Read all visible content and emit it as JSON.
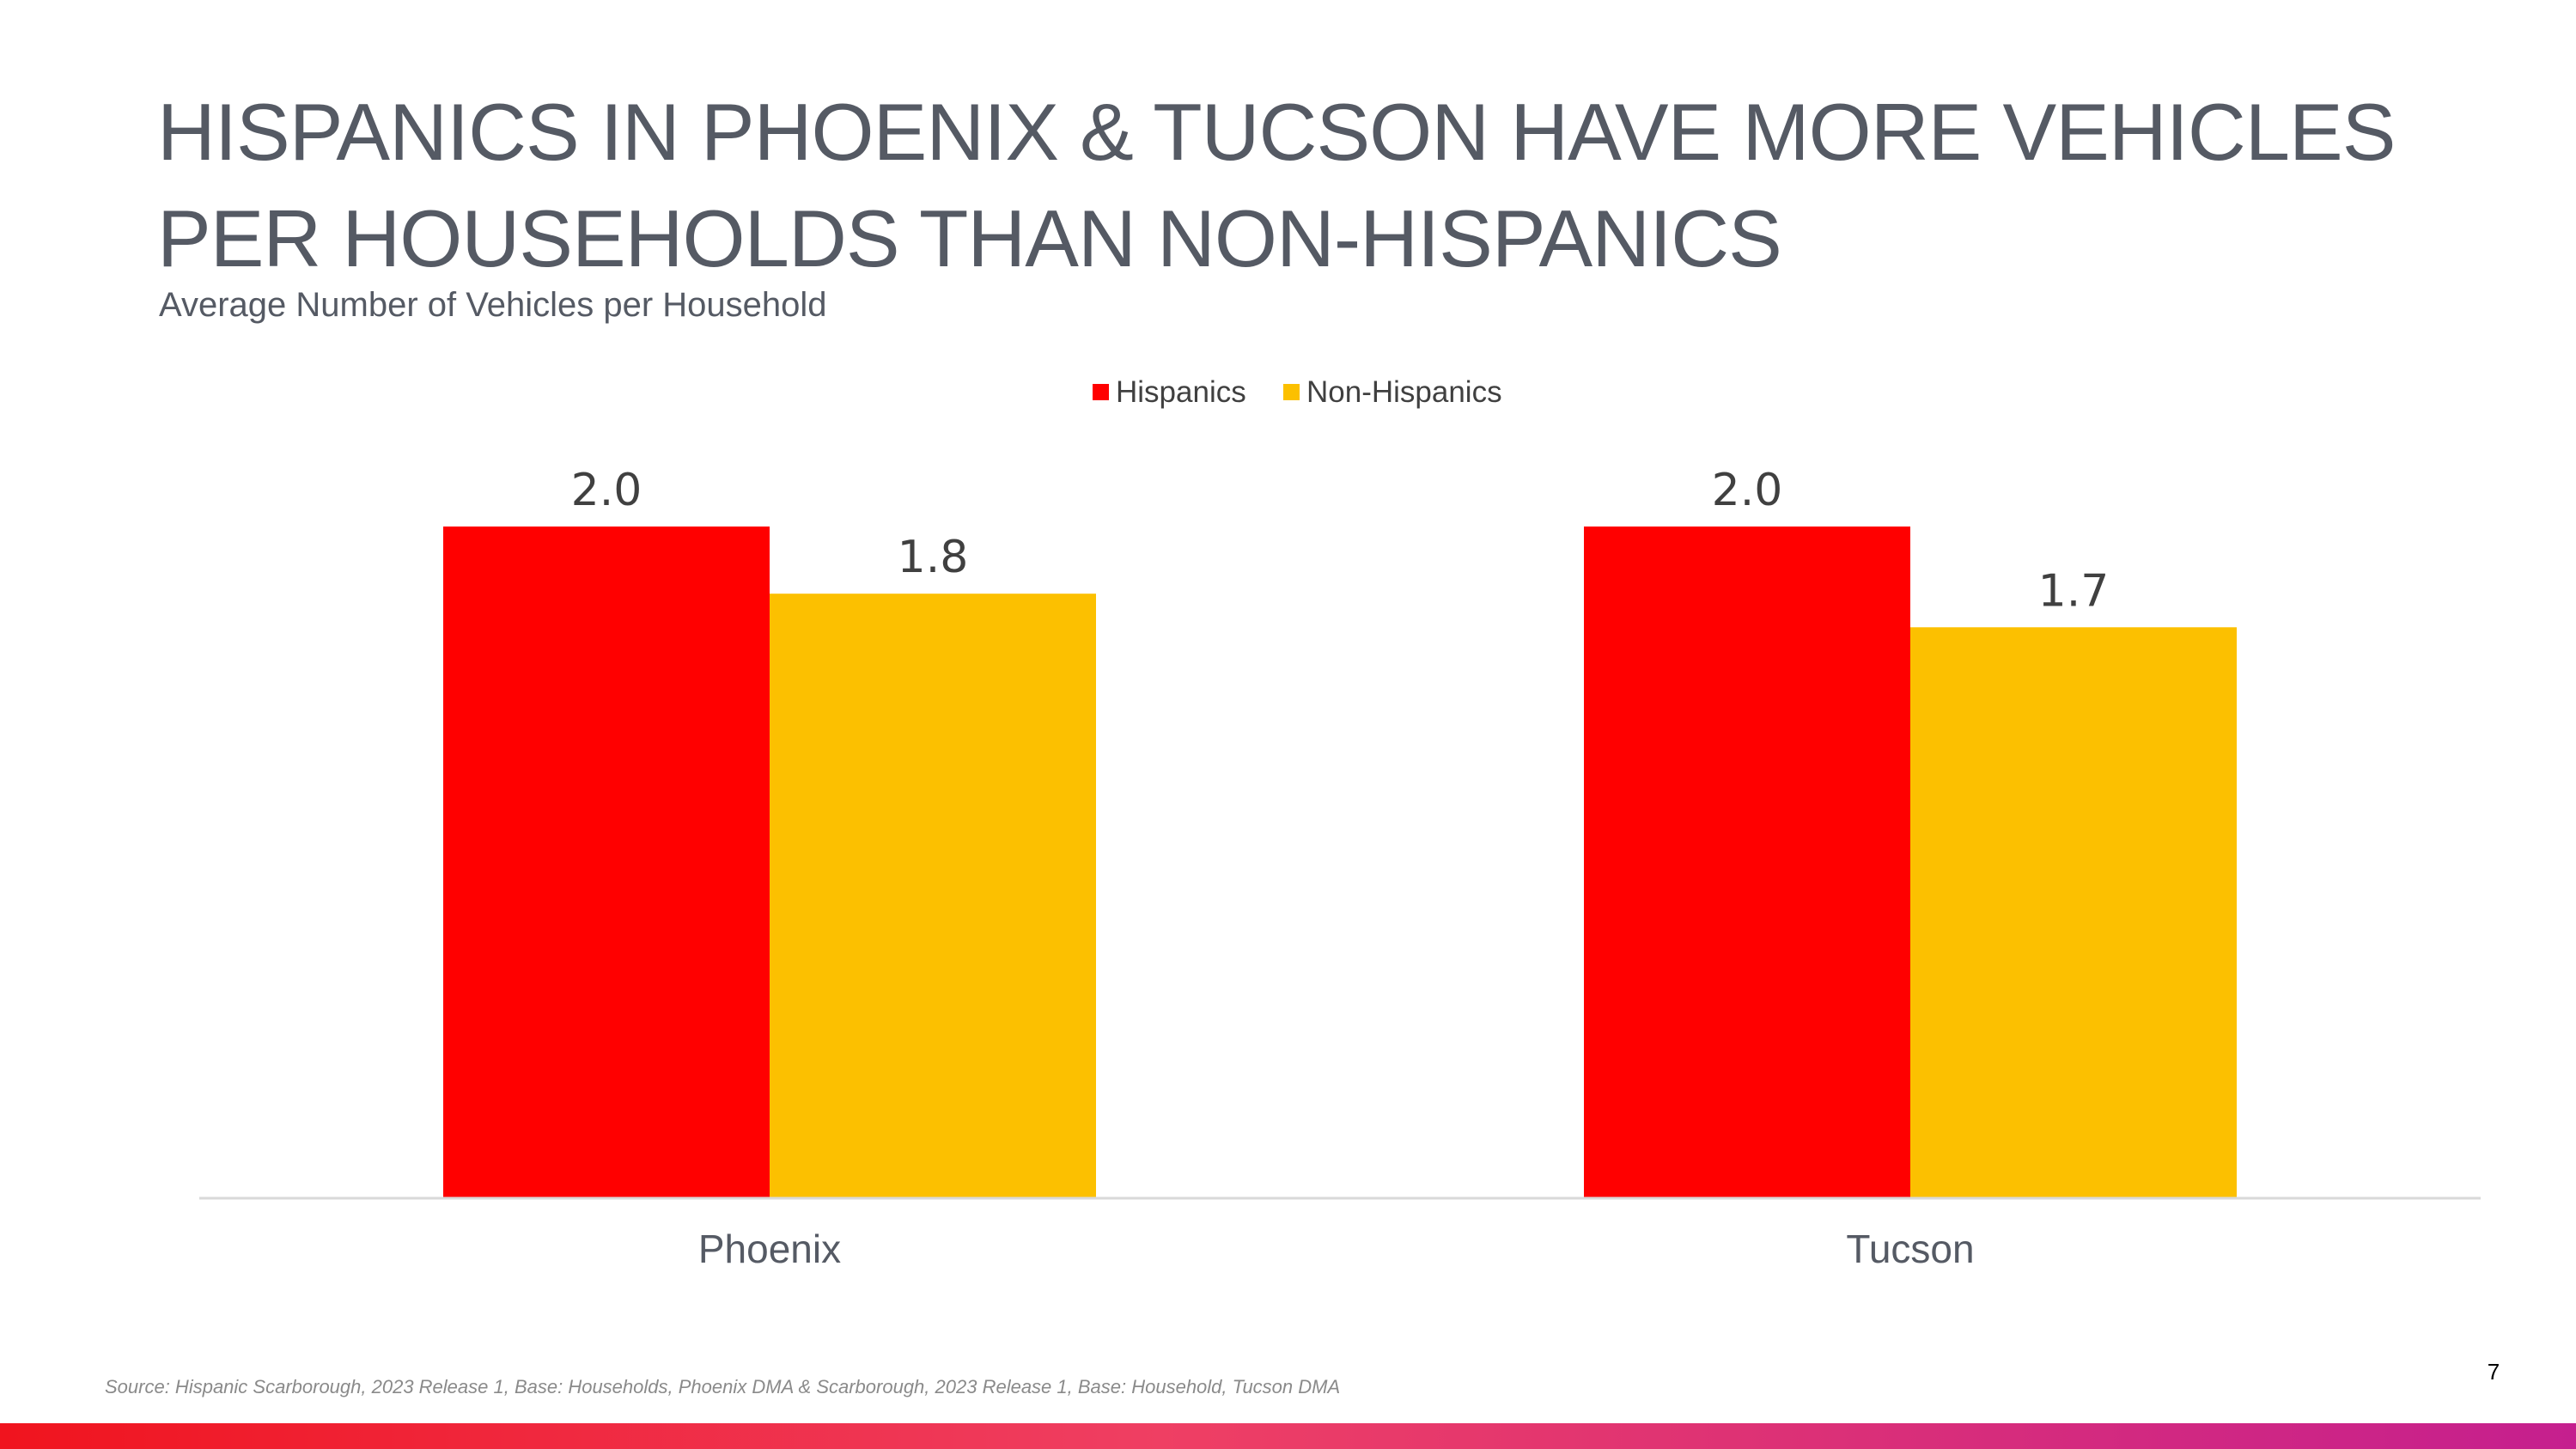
{
  "page": {
    "title": "HISPANICS IN PHOENIX & TUCSON HAVE MORE VEHICLES PER HOUSEHOLDS THAN NON-HISPANICS",
    "subtitle": "Average Number of Vehicles per Household",
    "source": "Source: Hispanic Scarborough, 2023 Release 1, Base: Households, Phoenix DMA & Scarborough, 2023 Release 1, Base: Household, Tucson DMA",
    "page_number": "7"
  },
  "colors": {
    "hispanics": "#ff0000",
    "non_hispanics": "#fcc000",
    "title_text": "#555a64",
    "axis_line": "#d9d9d9",
    "gradient_start": "#f0141e",
    "gradient_mid": "#ef3f63",
    "gradient_end": "#c51f8e"
  },
  "chart_data": {
    "type": "bar",
    "title": "Average Number of Vehicles per Household",
    "categories": [
      "Phoenix",
      "Tucson"
    ],
    "series": [
      {
        "name": "Hispanics",
        "values": [
          2.0,
          2.0
        ],
        "labels": [
          "2.0",
          "2.0"
        ]
      },
      {
        "name": "Non-Hispanics",
        "values": [
          1.8,
          1.7
        ],
        "labels": [
          "1.8",
          "1.7"
        ]
      }
    ],
    "legend_position": "top-center",
    "xlabel": "",
    "ylabel": "",
    "ylim": [
      0,
      2.0
    ],
    "grid": false
  }
}
